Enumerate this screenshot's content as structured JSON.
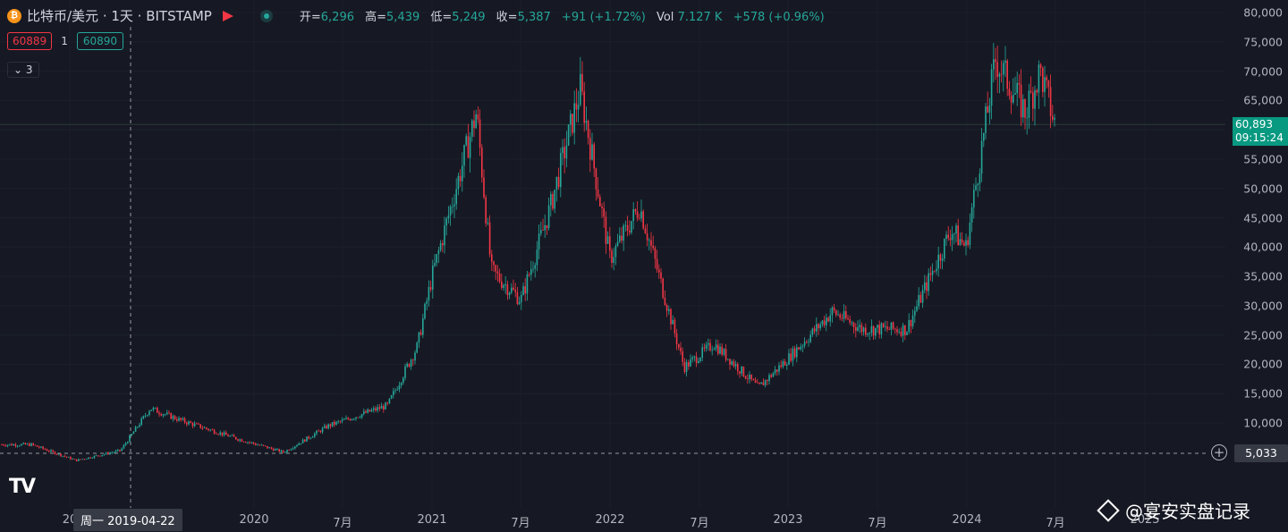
{
  "header": {
    "coin_icon": "bitcoin-icon",
    "coin_glyph": "₿",
    "title": "比特币/美元 · 1天 · BITSTAMP",
    "flag_color": "#f23645",
    "open_label": "开=",
    "open": "6,296",
    "high_label": "高=",
    "high": "5,439",
    "low_label": "低=",
    "low": "5,249",
    "close_label": "收=",
    "close": "5,387",
    "change": "+91 (+1.72%)",
    "vol_label": "Vol",
    "vol": "7.127 K",
    "vol_change": "+578 (+0.96%)"
  },
  "order": {
    "bid": "60889",
    "spread": "1",
    "ask": "60890"
  },
  "collapse": {
    "icon": "chevron-down-icon",
    "count": "3"
  },
  "price_tag": {
    "price": "60,893",
    "countdown": "09:15:24",
    "color": "#089981"
  },
  "crosshair": {
    "price": "5,033",
    "date": "周一  2019-04-22"
  },
  "watermark": "@宴安实盘记录",
  "logo": "TV",
  "colors": {
    "up": "#26a69a",
    "down": "#f23645",
    "background": "#161923"
  },
  "chart_data": {
    "type": "line",
    "title": "比特币/美元 · 1天 · BITSTAMP",
    "y_ticks": [
      "80,000",
      "75,000",
      "70,000",
      "65,000",
      "60,000",
      "55,000",
      "50,000",
      "45,000",
      "40,000",
      "35,000",
      "30,000",
      "25,000",
      "20,000",
      "15,000",
      "10,000"
    ],
    "x_ticks": [
      "20",
      "2020",
      "7月",
      "2021",
      "7月",
      "2022",
      "7月",
      "2023",
      "7月",
      "2024",
      "7月",
      "2025"
    ],
    "ylim": [
      0,
      80000
    ],
    "x": [
      "2018-10",
      "2019-01",
      "2019-04",
      "2019-06",
      "2019-08",
      "2019-12",
      "2020-03",
      "2020-06",
      "2020-10",
      "2020-12",
      "2021-01",
      "2021-04",
      "2021-05",
      "2021-07",
      "2021-09",
      "2021-11",
      "2022-01",
      "2022-03",
      "2022-06",
      "2022-08",
      "2022-11",
      "2023-01",
      "2023-04",
      "2023-06",
      "2023-09",
      "2023-12",
      "2024-01",
      "2024-03",
      "2024-05",
      "2024-06",
      "2024-07"
    ],
    "series": [
      {
        "values": [
          6300,
          3600,
          5300,
          12500,
          10500,
          7200,
          5000,
          9500,
          13000,
          23000,
          35000,
          63000,
          36000,
          31000,
          47000,
          67000,
          38000,
          47000,
          19500,
          23500,
          16000,
          21000,
          29000,
          26000,
          26000,
          43000,
          40000,
          72000,
          63000,
          70000,
          60893
        ]
      }
    ],
    "grid": true
  }
}
